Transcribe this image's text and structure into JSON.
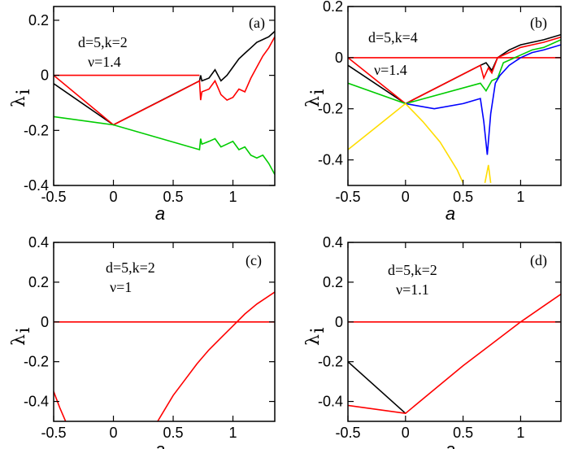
{
  "chart_data": [
    {
      "type": "line",
      "panel": "(a)",
      "annotation": [
        "d=5,k=2",
        "ν=1.4"
      ],
      "xlabel": "a",
      "ylabel": "λ",
      "ylabel_sub": "i",
      "xlim": [
        -0.5,
        1.35
      ],
      "ylim": [
        -0.4,
        0.25
      ],
      "xticks": [
        -0.5,
        0,
        0.5,
        1
      ],
      "xtick_labels": [
        "-0.5",
        "0",
        "0.5",
        "1"
      ],
      "yticks": [
        -0.4,
        -0.2,
        0,
        0.2
      ],
      "ytick_labels": [
        "-0.4",
        "-0.2",
        "0",
        "0.2"
      ],
      "series": [
        {
          "name": "lambda1",
          "color": "#000000",
          "x": [
            -0.5,
            0,
            0.72,
            0.73,
            0.74,
            0.8,
            0.85,
            0.9,
            0.95,
            1.0,
            1.05,
            1.1,
            1.15,
            1.2,
            1.25,
            1.3,
            1.35
          ],
          "y": [
            -0.03,
            -0.18,
            -0.02,
            0.0,
            -0.02,
            -0.01,
            0.02,
            -0.02,
            0.0,
            0.03,
            0.06,
            0.08,
            0.1,
            0.12,
            0.13,
            0.14,
            0.16
          ]
        },
        {
          "name": "lambda2",
          "color": "#ff0000",
          "x": [
            -0.5,
            0.72
          ],
          "y": [
            0.0,
            0.0
          ]
        },
        {
          "name": "lambda2b",
          "color": "#ff0000",
          "x": [
            -0.5,
            0,
            0.5,
            0.72,
            0.73,
            0.74,
            0.8,
            0.85,
            0.9,
            0.95,
            1.0,
            1.05,
            1.1,
            1.15,
            1.2,
            1.25,
            1.3,
            1.35
          ],
          "y": [
            0.0,
            -0.18,
            -0.07,
            -0.02,
            -0.09,
            -0.06,
            -0.05,
            -0.02,
            -0.07,
            -0.09,
            -0.08,
            -0.05,
            -0.06,
            -0.01,
            0.03,
            0.07,
            0.1,
            0.14
          ]
        },
        {
          "name": "lambda3",
          "color": "#00cc00",
          "x": [
            -0.5,
            0,
            0.72,
            0.73,
            0.74,
            0.8,
            0.85,
            0.9,
            0.95,
            1.0,
            1.05,
            1.1,
            1.15,
            1.2,
            1.25,
            1.3,
            1.35
          ],
          "y": [
            -0.15,
            -0.18,
            -0.27,
            -0.23,
            -0.25,
            -0.24,
            -0.23,
            -0.26,
            -0.25,
            -0.24,
            -0.27,
            -0.26,
            -0.29,
            -0.3,
            -0.29,
            -0.32,
            -0.36
          ]
        }
      ]
    },
    {
      "type": "line",
      "panel": "(b)",
      "annotation": [
        "d=5,k=4",
        "ν=1.4"
      ],
      "xlabel": "a",
      "ylabel": "λ",
      "ylabel_sub": "i",
      "xlim": [
        -0.5,
        1.35
      ],
      "ylim": [
        -0.5,
        0.2
      ],
      "xticks": [
        -0.5,
        0,
        0.5,
        1
      ],
      "xtick_labels": [
        "-0.5",
        "0",
        "0.5",
        "1"
      ],
      "yticks": [
        -0.4,
        -0.2,
        0,
        0.2
      ],
      "ytick_labels": [
        "-0.4",
        "-0.2",
        "0",
        "0.2"
      ],
      "series": [
        {
          "name": "zero",
          "color": "#ff0000",
          "x": [
            -0.5,
            1.35
          ],
          "y": [
            0.0,
            0.0
          ]
        },
        {
          "name": "black",
          "color": "#000000",
          "x": [
            -0.5,
            0,
            0.65,
            0.7,
            0.75,
            0.8,
            0.9,
            1.0,
            1.1,
            1.2,
            1.35
          ],
          "y": [
            -0.03,
            -0.18,
            -0.03,
            -0.02,
            -0.05,
            0.0,
            0.03,
            0.05,
            0.06,
            0.07,
            0.09
          ]
        },
        {
          "name": "red",
          "color": "#ff0000",
          "x": [
            -0.5,
            0,
            0.65,
            0.68,
            0.72,
            0.75,
            0.8,
            0.9,
            1.0,
            1.1,
            1.2,
            1.35
          ],
          "y": [
            0.0,
            -0.18,
            -0.03,
            -0.08,
            -0.04,
            -0.06,
            0.0,
            0.02,
            0.04,
            0.05,
            0.06,
            0.08
          ]
        },
        {
          "name": "green",
          "color": "#00cc00",
          "x": [
            -0.5,
            0,
            0.65,
            0.7,
            0.75,
            0.8,
            0.85,
            0.9,
            1.0,
            1.1,
            1.2,
            1.35
          ],
          "y": [
            -0.1,
            -0.18,
            -0.1,
            -0.13,
            -0.09,
            -0.08,
            -0.02,
            -0.01,
            0.01,
            0.03,
            0.04,
            0.07
          ]
        },
        {
          "name": "blue",
          "color": "#0000ff",
          "x": [
            0,
            0.25,
            0.5,
            0.65,
            0.68,
            0.71,
            0.74,
            0.78,
            0.82,
            0.9,
            1.0,
            1.1,
            1.2,
            1.35
          ],
          "y": [
            -0.18,
            -0.2,
            -0.18,
            -0.16,
            -0.25,
            -0.38,
            -0.22,
            -0.1,
            -0.07,
            -0.03,
            0.0,
            0.02,
            0.03,
            0.05
          ]
        },
        {
          "name": "yellow",
          "color": "#ffdd00",
          "x": [
            -0.5,
            -0.25,
            0,
            0.15,
            0.3,
            0.45,
            0.5
          ],
          "y": [
            -0.36,
            -0.27,
            -0.18,
            -0.25,
            -0.33,
            -0.44,
            -0.49
          ]
        },
        {
          "name": "yellow2",
          "color": "#ffdd00",
          "x": [
            0.69,
            0.72,
            0.74
          ],
          "y": [
            -0.49,
            -0.42,
            -0.49
          ]
        }
      ]
    },
    {
      "type": "line",
      "panel": "(c)",
      "annotation": [
        "d=5,k=2",
        "ν=1"
      ],
      "xlabel": "a",
      "ylabel": "λ",
      "ylabel_sub": "i",
      "xlim": [
        -0.5,
        1.35
      ],
      "ylim": [
        -0.5,
        0.4
      ],
      "xticks": [
        -0.5,
        0,
        0.5,
        1
      ],
      "xtick_labels": [
        "-0.5",
        "0",
        "0.5",
        "1"
      ],
      "yticks": [
        -0.4,
        -0.2,
        0,
        0.2,
        0.4
      ],
      "ytick_labels": [
        "-0.4",
        "-0.2",
        "0",
        "0.2",
        "0.4"
      ],
      "series": [
        {
          "name": "zero",
          "color": "#ff0000",
          "x": [
            -0.5,
            1.35
          ],
          "y": [
            0.0,
            0.0
          ]
        },
        {
          "name": "red-left",
          "color": "#ff0000",
          "x": [
            -0.5,
            -0.45,
            -0.4
          ],
          "y": [
            -0.35,
            -0.43,
            -0.5
          ]
        },
        {
          "name": "red-right",
          "color": "#ff0000",
          "x": [
            0.37,
            0.5,
            0.6,
            0.7,
            0.8,
            0.9,
            1.0,
            1.1,
            1.2,
            1.35
          ],
          "y": [
            -0.5,
            -0.37,
            -0.29,
            -0.21,
            -0.14,
            -0.08,
            -0.02,
            0.04,
            0.09,
            0.15
          ]
        }
      ]
    },
    {
      "type": "line",
      "panel": "(d)",
      "annotation": [
        "d=5,k=2",
        "ν=1.1"
      ],
      "xlabel": "a",
      "ylabel": "λ",
      "ylabel_sub": "i",
      "xlim": [
        -0.5,
        1.35
      ],
      "ylim": [
        -0.5,
        0.4
      ],
      "xticks": [
        -0.5,
        0,
        0.5,
        1
      ],
      "xtick_labels": [
        "-0.5",
        "0",
        "0.5",
        "1"
      ],
      "yticks": [
        -0.4,
        -0.2,
        0,
        0.2,
        0.4
      ],
      "ytick_labels": [
        "-0.4",
        "-0.2",
        "0",
        "0.2",
        "0.4"
      ],
      "series": [
        {
          "name": "zero",
          "color": "#ff0000",
          "x": [
            -0.5,
            1.35
          ],
          "y": [
            0.0,
            0.0
          ]
        },
        {
          "name": "black",
          "color": "#000000",
          "x": [
            -0.5,
            0
          ],
          "y": [
            -0.2,
            -0.46
          ]
        },
        {
          "name": "red",
          "color": "#ff0000",
          "x": [
            -0.5,
            0,
            0.25,
            0.5,
            0.75,
            1.0,
            1.2,
            1.35
          ],
          "y": [
            -0.42,
            -0.46,
            -0.34,
            -0.22,
            -0.11,
            0.0,
            0.08,
            0.14
          ]
        }
      ]
    }
  ]
}
